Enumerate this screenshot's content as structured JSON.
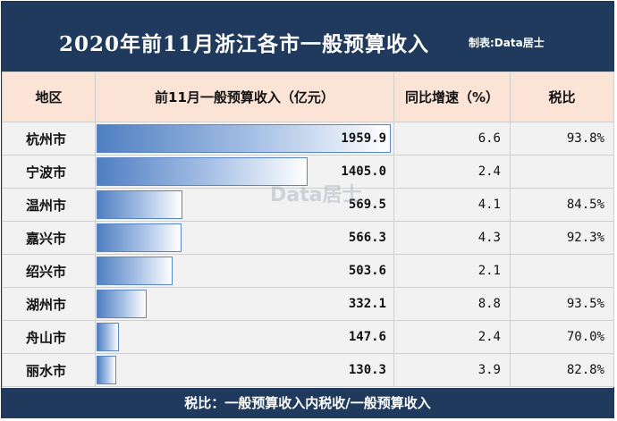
{
  "header": {
    "title": "2020年前11月浙江各市一般预算收入",
    "credit": "制表:Data居士"
  },
  "watermark": "Data居士",
  "columns": [
    "地区",
    "前11月一般预算收入（亿元）",
    "同比增速（%）",
    "税比"
  ],
  "footer": "税比：一般预算收入内税收/一般预算收入",
  "colors": {
    "header_bg": "#1f3a5c",
    "column_header_bg": "#fbe3d6",
    "bar_start": "#4f7fc1",
    "bar_end": "#ffffff"
  },
  "chart_data": {
    "type": "table",
    "bar_max": 1959.9,
    "rows": [
      {
        "region": "杭州市",
        "revenue": "1959.9",
        "value": 1959.9,
        "growth": "6.6",
        "tax_ratio": "93.8%"
      },
      {
        "region": "宁波市",
        "revenue": "1405.0",
        "value": 1405.0,
        "growth": "2.4",
        "tax_ratio": ""
      },
      {
        "region": "温州市",
        "revenue": "569.5",
        "value": 569.5,
        "growth": "4.1",
        "tax_ratio": "84.5%"
      },
      {
        "region": "嘉兴市",
        "revenue": "566.3",
        "value": 566.3,
        "growth": "4.3",
        "tax_ratio": "92.3%"
      },
      {
        "region": "绍兴市",
        "revenue": "503.6",
        "value": 503.6,
        "growth": "2.1",
        "tax_ratio": ""
      },
      {
        "region": "湖州市",
        "revenue": "332.1",
        "value": 332.1,
        "growth": "8.8",
        "tax_ratio": "93.5%"
      },
      {
        "region": "舟山市",
        "revenue": "147.6",
        "value": 147.6,
        "growth": "2.4",
        "tax_ratio": "70.0%"
      },
      {
        "region": "丽水市",
        "revenue": "130.3",
        "value": 130.3,
        "growth": "3.9",
        "tax_ratio": "82.8%"
      }
    ]
  }
}
